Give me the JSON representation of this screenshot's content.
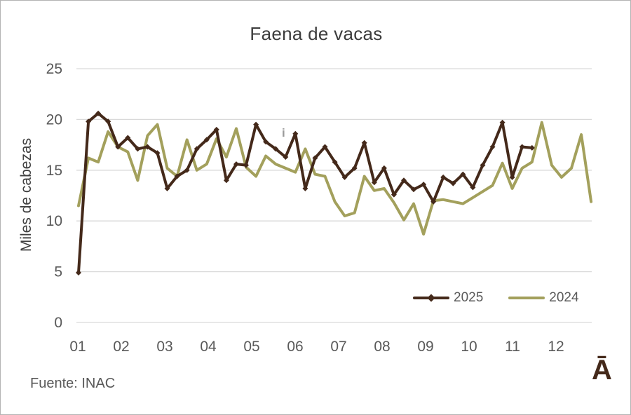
{
  "source_note": "Fuente: INAC",
  "artifacts": {
    "corner_glyph": "Ā",
    "stray_mark": "i"
  },
  "colors": {
    "series_2025": "#44291a",
    "series_2024": "#a3a05c",
    "gridline": "#d9d9d9",
    "tick_text": "#595959",
    "title_text": "#3d3d3d",
    "frame_border": "#b3b3b3"
  },
  "chart_data": {
    "type": "line",
    "title": "Faena de vacas",
    "xlabel": "",
    "ylabel": "Miles de cabezas",
    "x_unit": "week of year (weekly data, months 01-12 on axis)",
    "x_tick_labels": [
      "01",
      "02",
      "03",
      "04",
      "05",
      "06",
      "07",
      "08",
      "09",
      "10",
      "11",
      "12"
    ],
    "y_ticks": [
      0,
      5,
      10,
      15,
      20,
      25
    ],
    "ylim": [
      0,
      25
    ],
    "grid": true,
    "legend_position": "inside-bottom-right",
    "series": [
      {
        "name": "2025",
        "color": "#44291a",
        "marker": "diamond",
        "values": [
          4.9,
          19.8,
          20.6,
          19.8,
          17.3,
          18.2,
          17.1,
          17.3,
          16.7,
          13.2,
          14.4,
          15.0,
          17.1,
          18.0,
          19.0,
          14.0,
          15.6,
          15.5,
          19.5,
          17.8,
          17.1,
          16.3,
          18.6,
          13.2,
          16.2,
          17.3,
          15.8,
          14.3,
          15.2,
          17.7,
          13.8,
          15.2,
          12.6,
          14.0,
          13.1,
          13.6,
          11.9,
          14.3,
          13.7,
          14.6,
          13.3,
          15.5,
          17.3,
          19.7,
          14.3,
          17.3,
          17.2
        ]
      },
      {
        "name": "2024",
        "color": "#a3a05c",
        "marker": "none",
        "values": [
          11.5,
          16.2,
          15.8,
          18.8,
          17.3,
          16.8,
          14.0,
          18.4,
          19.5,
          15.2,
          14.4,
          18.0,
          15.0,
          15.6,
          18.1,
          16.3,
          19.1,
          15.3,
          14.4,
          16.4,
          15.6,
          15.2,
          14.8,
          17.1,
          14.6,
          14.4,
          11.9,
          10.5,
          10.8,
          14.4,
          13.0,
          13.2,
          11.8,
          10.1,
          11.7,
          8.7,
          12.0,
          12.1,
          11.9,
          11.7,
          12.3,
          12.9,
          13.5,
          15.7,
          13.2,
          15.2,
          15.8,
          19.7,
          15.5,
          14.3,
          15.2,
          18.5,
          11.9
        ]
      }
    ]
  }
}
